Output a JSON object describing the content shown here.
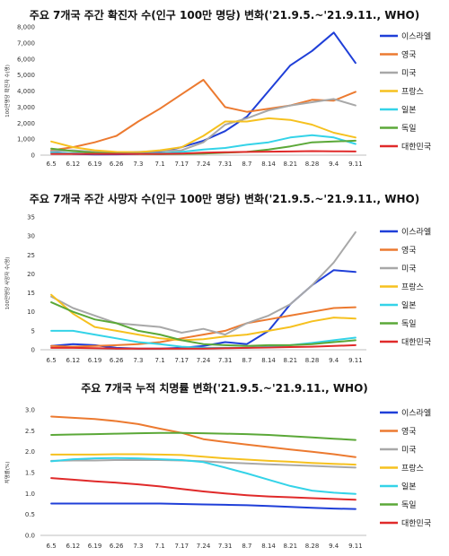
{
  "chart_data": [
    {
      "type": "line",
      "title": "주요 7개국 주간 확진자 수(인구 100만 명당) 변화('21.9.5.~'21.9.11., WHO)",
      "ylabel": "100만명당 확진자 수(명)",
      "ylim": [
        0,
        8000
      ],
      "yticks": [
        "0",
        "1,000",
        "2,000",
        "3,000",
        "4,000",
        "5,000",
        "6,000",
        "7,000",
        "8,000"
      ],
      "categories": [
        "6.5",
        "6.12",
        "6.19",
        "6.26",
        "7.3",
        "7.1",
        "7.17",
        "7.24",
        "7.31",
        "8.7",
        "8.14",
        "8.21",
        "8.28",
        "9.4",
        "9.11"
      ],
      "legend_position": "right",
      "series": [
        {
          "name": "이스라엘",
          "color": "#1f3fd8",
          "values": [
            200,
            80,
            40,
            50,
            80,
            200,
            500,
            900,
            1500,
            2400,
            4000,
            5600,
            6500,
            7650,
            5750
          ]
        },
        {
          "name": "영국",
          "color": "#ec7a30",
          "values": [
            300,
            500,
            800,
            1200,
            2100,
            2900,
            3800,
            4700,
            3000,
            2700,
            2900,
            3100,
            3450,
            3400,
            3950
          ]
        },
        {
          "name": "미국",
          "color": "#a8a8a8",
          "values": [
            250,
            300,
            200,
            180,
            200,
            250,
            300,
            800,
            1900,
            2300,
            2800,
            3100,
            3300,
            3500,
            3100
          ]
        },
        {
          "name": "프랑스",
          "color": "#f6c11f",
          "values": [
            850,
            500,
            300,
            200,
            180,
            300,
            500,
            1200,
            2100,
            2100,
            2300,
            2200,
            1900,
            1400,
            1100
          ]
        },
        {
          "name": "일본",
          "color": "#34d3e8",
          "values": [
            150,
            120,
            80,
            100,
            100,
            120,
            200,
            350,
            450,
            650,
            800,
            1100,
            1250,
            1100,
            700
          ]
        },
        {
          "name": "독일",
          "color": "#5ba838",
          "values": [
            400,
            250,
            150,
            100,
            80,
            60,
            80,
            100,
            150,
            200,
            350,
            550,
            800,
            850,
            900
          ]
        },
        {
          "name": "대한민국",
          "color": "#e02a2a",
          "values": [
            80,
            80,
            80,
            80,
            80,
            80,
            100,
            150,
            180,
            200,
            220,
            230,
            250,
            240,
            230
          ]
        }
      ]
    },
    {
      "type": "line",
      "title": "주요 7개국 주간 사망자 수(인구 100만 명당) 변화('21.9.5.~'21.9.11., WHO)",
      "ylabel": "100만명당 사망자 수(명)",
      "ylim": [
        0,
        35
      ],
      "yticks": [
        "0",
        "5",
        "10",
        "15",
        "20",
        "25",
        "30",
        "35"
      ],
      "categories": [
        "6.5",
        "6.12",
        "6.19",
        "6.26",
        "7.3",
        "7.1",
        "7.17",
        "7.24",
        "7.31",
        "8.7",
        "8.14",
        "8.21",
        "8.28",
        "9.4",
        "9.11"
      ],
      "legend_position": "right",
      "series": [
        {
          "name": "이스라엘",
          "color": "#1f3fd8",
          "values": [
            1,
            1.5,
            1.2,
            0.5,
            0.3,
            0.3,
            0.5,
            1.0,
            2.0,
            1.5,
            5,
            12,
            17,
            21,
            20.5
          ]
        },
        {
          "name": "영국",
          "color": "#ec7a30",
          "values": [
            1,
            0.8,
            1.0,
            1.2,
            1.5,
            2.0,
            3,
            4,
            5,
            7,
            8,
            9,
            10,
            11,
            11.2
          ]
        },
        {
          "name": "미국",
          "color": "#a8a8a8",
          "values": [
            14,
            11,
            9,
            7,
            6.5,
            6,
            4.5,
            5.5,
            4,
            7,
            9,
            12,
            17,
            23,
            31
          ]
        },
        {
          "name": "프랑스",
          "color": "#f6c11f",
          "values": [
            14.5,
            9.5,
            6,
            5,
            4,
            3,
            2.5,
            2.8,
            3.5,
            4,
            5,
            6,
            7.5,
            8.5,
            8.2
          ]
        },
        {
          "name": "일본",
          "color": "#34d3e8",
          "values": [
            5,
            5,
            4,
            3,
            2,
            1.5,
            0.8,
            0.5,
            0.5,
            0.5,
            0.8,
            1.2,
            1.8,
            2.5,
            3.2
          ]
        },
        {
          "name": "독일",
          "color": "#5ba838",
          "values": [
            12.5,
            10,
            8,
            7,
            5,
            4,
            2.5,
            1.5,
            1.2,
            1.0,
            1.2,
            1.2,
            1.5,
            2,
            2.5
          ]
        },
        {
          "name": "대한민국",
          "color": "#e02a2a",
          "values": [
            0.5,
            0.5,
            0.4,
            0.3,
            0.3,
            0.3,
            0.3,
            0.3,
            0.4,
            0.5,
            0.6,
            0.7,
            0.8,
            1.0,
            1.2
          ]
        }
      ]
    },
    {
      "type": "line",
      "title": "주요 7개국 누적 치명률 변화('21.9.5.~'21.9.11., WHO)",
      "ylabel": "치명률(%)",
      "ylim": [
        0,
        3.0
      ],
      "yticks": [
        "0.0",
        "0.5",
        "1.0",
        "1.5",
        "2.0",
        "2.5",
        "3.0"
      ],
      "categories": [
        "6.5",
        "6.12",
        "6.19",
        "6.26",
        "7.3",
        "7.1",
        "7.17",
        "7.24",
        "7.31",
        "8.7",
        "8.14",
        "8.21",
        "8.28",
        "9.4",
        "9.11"
      ],
      "legend_position": "right",
      "series": [
        {
          "name": "이스라엘",
          "color": "#1f3fd8",
          "values": [
            0.76,
            0.76,
            0.76,
            0.76,
            0.76,
            0.76,
            0.75,
            0.74,
            0.73,
            0.72,
            0.7,
            0.68,
            0.66,
            0.64,
            0.63
          ]
        },
        {
          "name": "영국",
          "color": "#ec7a30",
          "values": [
            2.84,
            2.81,
            2.78,
            2.73,
            2.66,
            2.55,
            2.45,
            2.3,
            2.23,
            2.17,
            2.11,
            2.05,
            2.0,
            1.94,
            1.87
          ]
        },
        {
          "name": "미국",
          "color": "#a8a8a8",
          "values": [
            1.78,
            1.79,
            1.79,
            1.8,
            1.8,
            1.8,
            1.79,
            1.77,
            1.74,
            1.72,
            1.7,
            1.68,
            1.66,
            1.64,
            1.62
          ]
        },
        {
          "name": "프랑스",
          "color": "#f6c11f",
          "values": [
            1.93,
            1.93,
            1.93,
            1.94,
            1.94,
            1.93,
            1.92,
            1.88,
            1.84,
            1.81,
            1.78,
            1.76,
            1.73,
            1.71,
            1.69
          ]
        },
        {
          "name": "일본",
          "color": "#34d3e8",
          "values": [
            1.77,
            1.82,
            1.84,
            1.85,
            1.84,
            1.82,
            1.8,
            1.75,
            1.62,
            1.48,
            1.33,
            1.18,
            1.07,
            1.02,
            0.99
          ]
        },
        {
          "name": "독일",
          "color": "#5ba838",
          "values": [
            2.4,
            2.41,
            2.42,
            2.43,
            2.44,
            2.45,
            2.45,
            2.44,
            2.43,
            2.42,
            2.4,
            2.37,
            2.34,
            2.31,
            2.28
          ]
        },
        {
          "name": "대한민국",
          "color": "#e02a2a",
          "values": [
            1.37,
            1.33,
            1.29,
            1.26,
            1.22,
            1.17,
            1.11,
            1.05,
            1.0,
            0.96,
            0.93,
            0.91,
            0.89,
            0.87,
            0.85
          ]
        }
      ]
    }
  ]
}
